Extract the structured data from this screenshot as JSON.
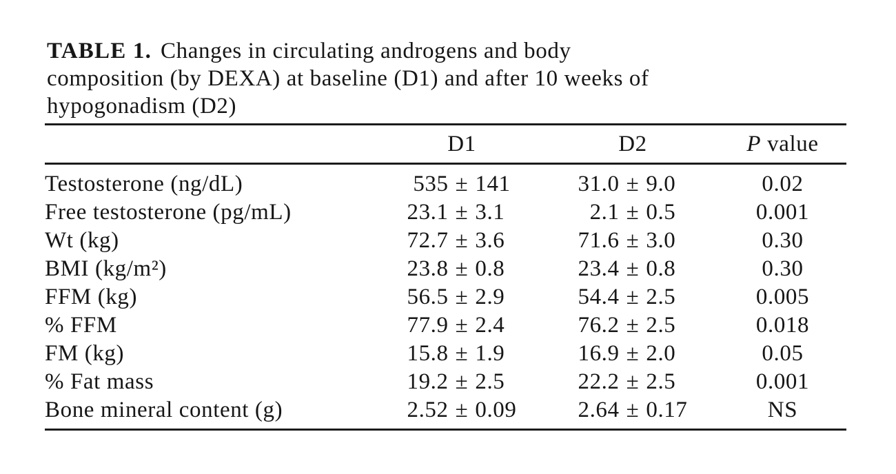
{
  "title": {
    "label": "TABLE 1.",
    "line1": "Changes in circulating androgens and body",
    "line2": "composition (by DEXA) at baseline (D1) and after 10 weeks of",
    "line3": "hypogonadism (D2)"
  },
  "table": {
    "pm": "±",
    "header": {
      "col_label": "",
      "col_d1": "D1",
      "col_d2": "D2",
      "col_p_symbol": "P",
      "col_p_rest": "value"
    },
    "rows": [
      {
        "label": "Testosterone (ng/dL)",
        "d1_val": "535",
        "d1_err": "141",
        "d2_val": "31.0",
        "d2_err": "9.0",
        "p": "0.02"
      },
      {
        "label": "Free testosterone (pg/mL)",
        "d1_val": "23.1",
        "d1_err": "3.1",
        "d2_val": "2.1",
        "d2_err": "0.5",
        "p": "0.001"
      },
      {
        "label": "Wt (kg)",
        "d1_val": "72.7",
        "d1_err": "3.6",
        "d2_val": "71.6",
        "d2_err": "3.0",
        "p": "0.30"
      },
      {
        "label": "BMI (kg/m²)",
        "d1_val": "23.8",
        "d1_err": "0.8",
        "d2_val": "23.4",
        "d2_err": "0.8",
        "p": "0.30"
      },
      {
        "label": "FFM (kg)",
        "d1_val": "56.5",
        "d1_err": "2.9",
        "d2_val": "54.4",
        "d2_err": "2.5",
        "p": "0.005"
      },
      {
        "label": "% FFM",
        "d1_val": "77.9",
        "d1_err": "2.4",
        "d2_val": "76.2",
        "d2_err": "2.5",
        "p": "0.018"
      },
      {
        "label": "FM (kg)",
        "d1_val": "15.8",
        "d1_err": "1.9",
        "d2_val": "16.9",
        "d2_err": "2.0",
        "p": "0.05"
      },
      {
        "label": "% Fat mass",
        "d1_val": "19.2",
        "d1_err": "2.5",
        "d2_val": "22.2",
        "d2_err": "2.5",
        "p": "0.001"
      },
      {
        "label": "Bone mineral content (g)",
        "d1_val": "2.52",
        "d1_err": "0.09",
        "d2_val": "2.64",
        "d2_err": "0.17",
        "p": "NS"
      }
    ]
  },
  "colors": {
    "text": "#161616",
    "rule": "#1b1b1b",
    "background": "#ffffff"
  }
}
